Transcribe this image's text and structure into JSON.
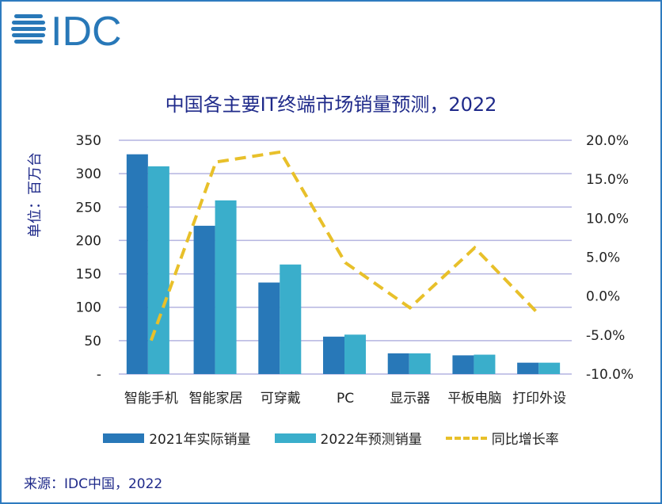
{
  "logo_text": "IDC",
  "chart_data": {
    "type": "bar",
    "title": "中国各主要IT终端市场销量预测，2022",
    "ylabel": "单位：百万台",
    "categories": [
      "智能手机",
      "智能家居",
      "可穿戴",
      "PC",
      "显示器",
      "平板电脑",
      "打印外设"
    ],
    "series": [
      {
        "name": "2021年实际销量",
        "type": "bar",
        "axis": "left",
        "color": "#2878b8",
        "values": [
          329,
          222,
          137,
          56,
          31,
          28,
          17
        ]
      },
      {
        "name": "2022年预测销量",
        "type": "bar",
        "axis": "left",
        "color": "#3aaecb",
        "values": [
          311,
          260,
          164,
          59,
          31,
          29,
          17
        ]
      },
      {
        "name": "同比增长率",
        "type": "line",
        "style": "dashed",
        "axis": "right",
        "color": "#e8c02a",
        "values": [
          -5.7,
          17.2,
          18.5,
          4.3,
          -1.5,
          6.2,
          -2.4
        ]
      }
    ],
    "ylim": [
      0,
      350
    ],
    "yticks": [
      "-",
      "50",
      "100",
      "150",
      "200",
      "250",
      "300",
      "350"
    ],
    "y2lim": [
      -10,
      20
    ],
    "y2ticks": [
      "-10.0%",
      "-5.0%",
      "0.0%",
      "5.0%",
      "10.0%",
      "15.0%",
      "20.0%"
    ],
    "grid": true,
    "legend": "bottom"
  },
  "source": "来源：IDC中国，2022"
}
